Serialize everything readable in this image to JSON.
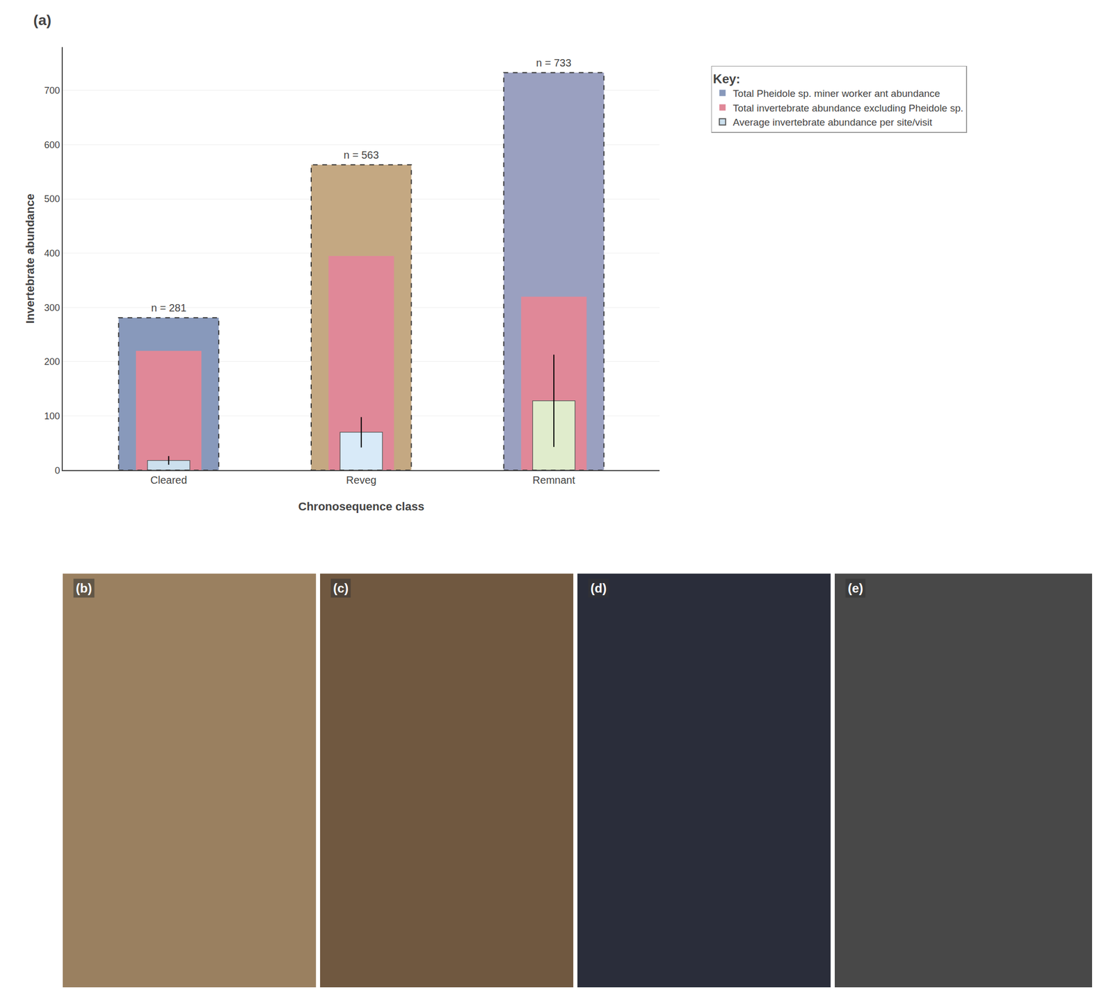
{
  "chart_data": {
    "type": "bar",
    "title": "(a)",
    "xlabel": "Chronosequence class",
    "ylabel": "Invertebrate abundance",
    "categories": [
      "Cleared",
      "Reveg",
      "Remnant"
    ],
    "series": [
      {
        "name": "Total Pheidole sp. miner worker ant abundance",
        "colors": [
          "#8899bb",
          "#c4a882",
          "#9aa0c0"
        ],
        "values": [
          281,
          563,
          733
        ],
        "data_labels": true,
        "value_labels": [
          "n = 281",
          "n = 563",
          "n = 733"
        ],
        "line_style": "dashed"
      },
      {
        "name": "Total invertebrate abundance excluding Pheidole sp.",
        "color": "#e08898",
        "values": [
          220,
          395,
          320
        ]
      },
      {
        "name": "Average invertebrate abundance per site/visit",
        "colors": [
          "#cce0ee",
          "#d8eaf8",
          "#e0eccc"
        ],
        "values": [
          18,
          70,
          128
        ],
        "errors": [
          8,
          28,
          85
        ]
      }
    ],
    "ylim": [
      0,
      780
    ],
    "yticks": [
      0,
      100,
      200,
      300,
      400,
      500,
      600,
      700
    ],
    "grid": true,
    "legend_title": "Key:",
    "panels": [
      {
        "label": "(b)",
        "color": "#9a8060"
      },
      {
        "label": "(c)",
        "color": "#705840"
      },
      {
        "label": "(d)",
        "color": "#2a2d3a"
      },
      {
        "label": "(e)",
        "color": "#484848"
      }
    ]
  }
}
